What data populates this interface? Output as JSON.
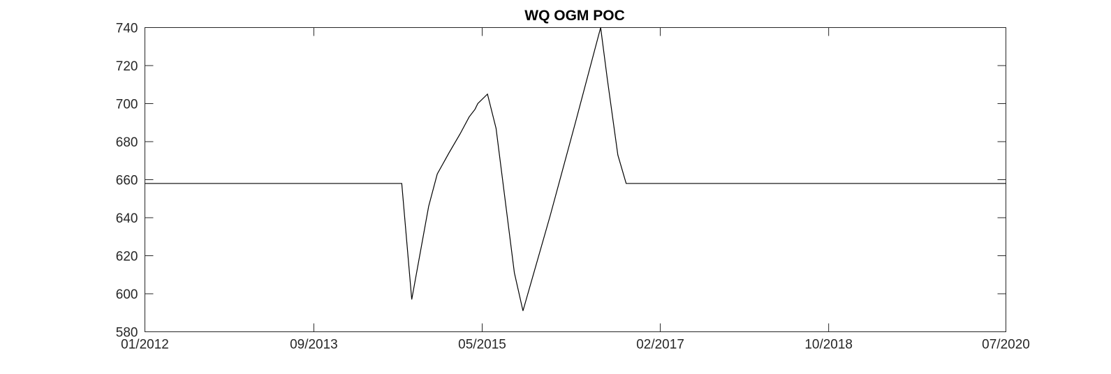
{
  "chart_data": {
    "type": "line",
    "title": "WQ OGM POC",
    "xlabel": "",
    "ylabel": "",
    "xlim": [
      "2012-01-01",
      "2020-07-01"
    ],
    "ylim": [
      580,
      740
    ],
    "grid": false,
    "x_ticks": [
      {
        "date": "2012-01-01",
        "label": "01/2012"
      },
      {
        "date": "2013-09-01",
        "label": "09/2013"
      },
      {
        "date": "2015-05-01",
        "label": "05/2015"
      },
      {
        "date": "2017-02-01",
        "label": "02/2017"
      },
      {
        "date": "2018-10-01",
        "label": "10/2018"
      },
      {
        "date": "2020-07-01",
        "label": "07/2020"
      }
    ],
    "y_ticks": [
      580,
      600,
      620,
      640,
      660,
      680,
      700,
      720,
      740
    ],
    "series": [
      {
        "color": "#000000",
        "points": [
          {
            "x": "2012-01-01",
            "y": 658
          },
          {
            "x": "2014-07-15",
            "y": 658
          },
          {
            "x": "2014-08-20",
            "y": 597
          },
          {
            "x": "2014-10-20",
            "y": 646
          },
          {
            "x": "2014-11-20",
            "y": 663
          },
          {
            "x": "2015-01-01",
            "y": 674
          },
          {
            "x": "2015-02-10",
            "y": 684
          },
          {
            "x": "2015-03-15",
            "y": 693
          },
          {
            "x": "2015-04-05",
            "y": 697
          },
          {
            "x": "2015-04-15",
            "y": 700
          },
          {
            "x": "2015-05-20",
            "y": 705
          },
          {
            "x": "2015-06-20",
            "y": 687
          },
          {
            "x": "2015-08-25",
            "y": 611
          },
          {
            "x": "2015-09-25",
            "y": 591
          },
          {
            "x": "2016-01-01",
            "y": 641
          },
          {
            "x": "2016-04-01",
            "y": 690
          },
          {
            "x": "2016-07-01",
            "y": 740
          },
          {
            "x": "2016-07-25",
            "y": 713
          },
          {
            "x": "2016-09-01",
            "y": 673
          },
          {
            "x": "2016-10-01",
            "y": 658
          },
          {
            "x": "2020-07-01",
            "y": 658
          }
        ]
      }
    ]
  }
}
